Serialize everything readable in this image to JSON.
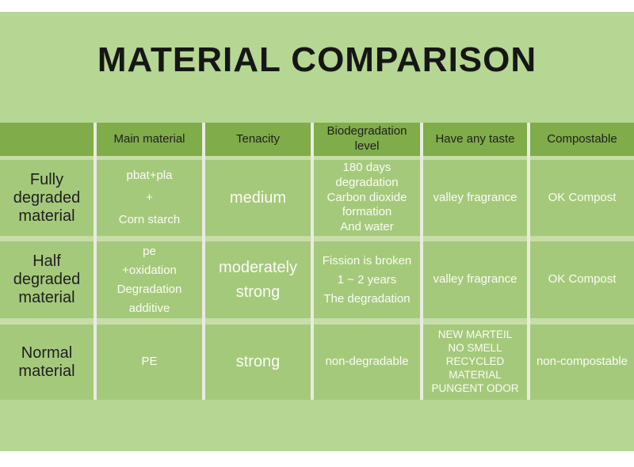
{
  "title": "MATERIAL COMPARISON",
  "colors": {
    "page_background": "#b6d693",
    "band": "#ffffff",
    "header_cell": "#80ac49",
    "body_cell": "#a5c97b",
    "row_separator": "#c6dda8",
    "column_separator": "#e9ebe3",
    "dark_text": "#1f1f1f",
    "light_text": "#fafcf5"
  },
  "table": {
    "columns": [
      "",
      "Main material",
      "Tenacity",
      "Biodegradation\nlevel",
      "Have any taste",
      "Compostable"
    ],
    "rows": [
      {
        "label": "Fully\ndegraded\nmaterial",
        "main_material": "pbat+pla\n+\nCorn starch",
        "tenacity": "medium",
        "biodegradation": "180 days\ndegradation\nCarbon dioxide\nformation\nAnd water",
        "taste": "valley fragrance",
        "compostable": "OK Compost"
      },
      {
        "label": "Half\ndegraded\nmaterial",
        "main_material": "pe\n+oxidation\nDegradation\nadditive",
        "tenacity": "moderately\nstrong",
        "biodegradation": "Fission is broken\n1 ~ 2 years\nThe degradation",
        "taste": "valley fragrance",
        "compostable": "OK Compost"
      },
      {
        "label": "Normal\nmaterial",
        "main_material": "PE",
        "tenacity": "strong",
        "biodegradation": "non-degradable",
        "taste": "NEW MARTEIL\nNO SMELL\nRECYCLED MATERIAL\nPUNGENT ODOR",
        "compostable": "non-compostable"
      }
    ]
  }
}
